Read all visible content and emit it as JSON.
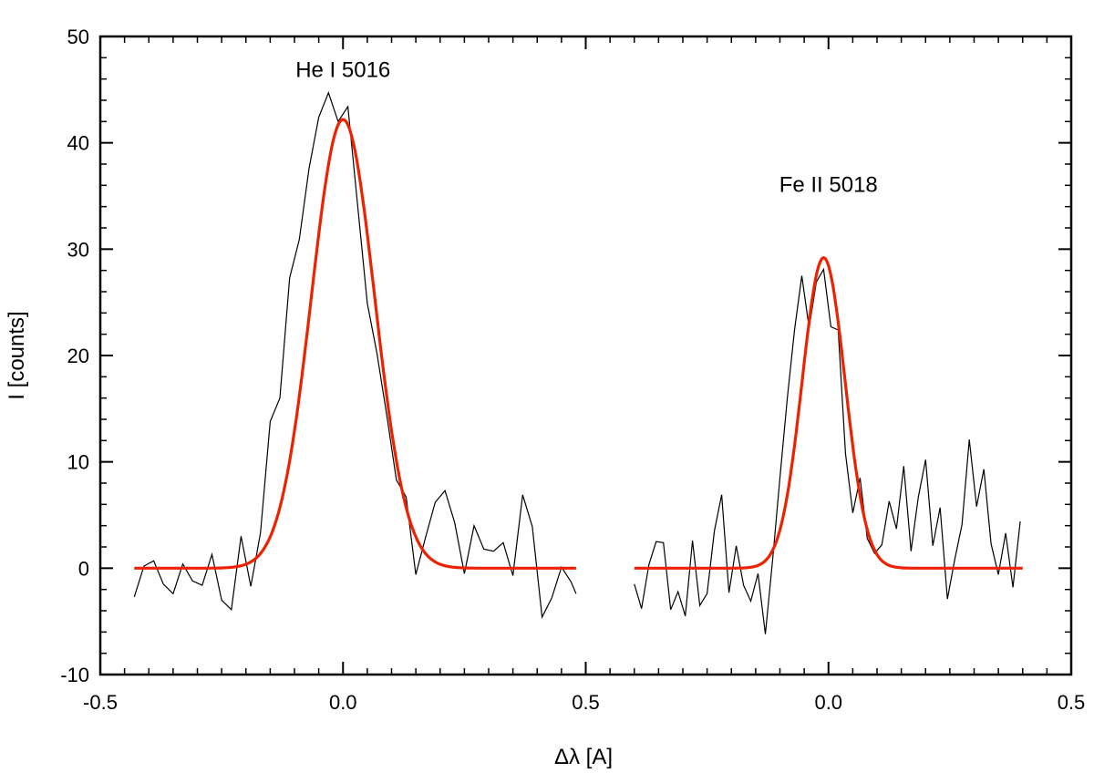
{
  "chart_data": {
    "type": "line",
    "title": "",
    "xlabel": "Δλ [A]",
    "ylabel": "I [counts]",
    "ylim": [
      -10,
      50
    ],
    "yticks": [
      -10,
      0,
      10,
      20,
      30,
      40,
      50
    ],
    "ytick_labels": [
      "-10",
      "0",
      "10",
      "20",
      "30",
      "40",
      "50"
    ],
    "colors": {
      "observed": "#000000",
      "fit": "#ee2200",
      "axis": "#000000"
    },
    "grid": false,
    "legend": "none",
    "panels": [
      {
        "name": "He I 5016",
        "annotation": {
          "text": "He I 5016",
          "x": 0.0,
          "y": 46.2
        },
        "xlim": [
          -0.5,
          0.5
        ],
        "xticks": [
          -0.5,
          0.0,
          0.5
        ],
        "xtick_labels": [
          "-0.5",
          "0.0",
          "0.5"
        ],
        "fit": {
          "amplitude": 42.2,
          "center": 0.0,
          "sigma": 0.065,
          "x_range": [
            -0.43,
            0.48
          ]
        },
        "observed": {
          "x": [
            -0.43,
            -0.41,
            -0.39,
            -0.37,
            -0.35,
            -0.33,
            -0.31,
            -0.29,
            -0.27,
            -0.25,
            -0.23,
            -0.21,
            -0.19,
            -0.17,
            -0.15,
            -0.13,
            -0.11,
            -0.09,
            -0.07,
            -0.05,
            -0.03,
            -0.01,
            0.01,
            0.03,
            0.05,
            0.07,
            0.09,
            0.11,
            0.13,
            0.15,
            0.17,
            0.19,
            0.21,
            0.23,
            0.25,
            0.27,
            0.29,
            0.31,
            0.33,
            0.35,
            0.37,
            0.39,
            0.41,
            0.43,
            0.45,
            0.47,
            0.48
          ],
          "y": [
            -2.7,
            0.2,
            0.7,
            -1.5,
            -2.4,
            0.4,
            -1.2,
            -1.6,
            1.3,
            -3.0,
            -3.9,
            3.0,
            -1.7,
            3.3,
            13.8,
            16.0,
            27.3,
            30.9,
            37.6,
            42.4,
            44.7,
            42.0,
            43.4,
            34.2,
            24.9,
            20.2,
            14.4,
            8.3,
            6.7,
            -0.6,
            2.9,
            6.2,
            7.3,
            4.3,
            -0.5,
            4.0,
            1.8,
            1.6,
            2.4,
            -0.7,
            6.9,
            3.9,
            -4.6,
            -2.8,
            0.1,
            -1.3,
            -2.4
          ]
        }
      },
      {
        "name": "Fe II 5018",
        "annotation": {
          "text": "Fe II 5018",
          "x": 0.0,
          "y": 35.4
        },
        "xlim": [
          -0.5,
          0.5
        ],
        "xticks": [
          0.0,
          0.5
        ],
        "xtick_labels": [
          "0.0",
          "0.5"
        ],
        "fit": {
          "amplitude": 29.2,
          "center": -0.01,
          "sigma": 0.044,
          "x_range": [
            -0.4,
            0.4
          ]
        },
        "observed": {
          "x": [
            -0.4,
            -0.385,
            -0.37,
            -0.355,
            -0.34,
            -0.325,
            -0.31,
            -0.295,
            -0.28,
            -0.265,
            -0.25,
            -0.235,
            -0.22,
            -0.205,
            -0.19,
            -0.175,
            -0.16,
            -0.145,
            -0.13,
            -0.115,
            -0.1,
            -0.085,
            -0.07,
            -0.055,
            -0.04,
            -0.025,
            -0.01,
            0.005,
            0.02,
            0.035,
            0.05,
            0.065,
            0.08,
            0.095,
            0.11,
            0.125,
            0.14,
            0.155,
            0.17,
            0.185,
            0.2,
            0.215,
            0.23,
            0.245,
            0.26,
            0.275,
            0.29,
            0.305,
            0.32,
            0.335,
            0.35,
            0.365,
            0.38,
            0.395
          ],
          "y": [
            -1.5,
            -3.8,
            0.3,
            2.5,
            2.4,
            -3.9,
            -2.2,
            -4.5,
            2.6,
            -3.5,
            -2.4,
            3.5,
            6.9,
            -2.3,
            2.1,
            -1.6,
            -3.1,
            -0.5,
            -6.2,
            0.8,
            8.5,
            15.9,
            22.4,
            27.5,
            22.6,
            26.9,
            28.1,
            22.7,
            22.4,
            10.8,
            5.2,
            8.5,
            2.8,
            1.4,
            2.2,
            6.3,
            3.7,
            9.6,
            1.6,
            6.7,
            10.2,
            2.1,
            5.7,
            -2.9,
            0.8,
            4.1,
            12.1,
            5.8,
            9.3,
            2.3,
            -0.6,
            3.3,
            -1.8,
            4.4
          ]
        }
      }
    ]
  }
}
